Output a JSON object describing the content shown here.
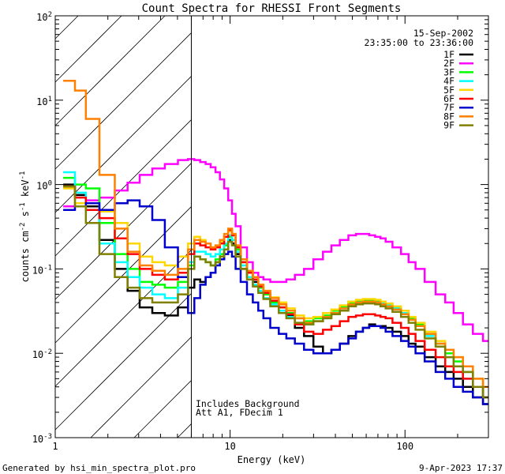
{
  "chart_data": {
    "type": "line",
    "title": "Count Spectra for RHESSI Front Segments",
    "date": "15-Sep-2002",
    "time_range": "23:35:00 to 23:36:00",
    "xlabel": "Energy (keV)",
    "ylabel_parts": [
      "counts cm",
      "-2",
      " s",
      "-1",
      " keV",
      "-1"
    ],
    "xscale": "log",
    "yscale": "log",
    "xlim": [
      1,
      300
    ],
    "ylim": [
      0.001,
      100
    ],
    "x_ticks": [
      {
        "value": 1,
        "label": "1"
      },
      {
        "value": 10,
        "label": "10"
      },
      {
        "value": 100,
        "label": "100"
      }
    ],
    "y_ticks": [
      {
        "value": 0.001,
        "base": "10",
        "exp": "-3"
      },
      {
        "value": 0.01,
        "base": "10",
        "exp": "-2"
      },
      {
        "value": 0.1,
        "base": "10",
        "exp": "-1"
      },
      {
        "value": 1,
        "base": "10",
        "exp": "0"
      },
      {
        "value": 10,
        "base": "10",
        "exp": "1"
      },
      {
        "value": 100,
        "base": "10",
        "exp": "2"
      }
    ],
    "hatched_region_end_keV": 6,
    "annotations": [
      "Includes Background",
      "Att A1, FDecim 1"
    ],
    "legend_position": "top-right",
    "energy_keV": [
      1.2,
      1.4,
      1.6,
      2,
      2.4,
      2.8,
      3.3,
      3.9,
      4.6,
      5.5,
      6,
      6.5,
      7,
      7.5,
      8,
      8.5,
      9,
      9.5,
      10,
      10.5,
      11,
      12,
      13,
      14,
      15,
      16,
      18,
      20,
      22,
      25,
      28,
      32,
      36,
      40,
      45,
      50,
      55,
      60,
      65,
      70,
      75,
      80,
      90,
      100,
      110,
      120,
      140,
      160,
      180,
      200,
      230,
      260,
      300
    ],
    "series": [
      {
        "name": "1F",
        "color": "#000000",
        "values": [
          1.0,
          0.75,
          0.55,
          0.22,
          0.1,
          0.055,
          0.035,
          0.03,
          0.028,
          0.035,
          0.06,
          0.075,
          0.07,
          0.08,
          0.09,
          0.12,
          0.13,
          0.17,
          0.22,
          0.2,
          0.15,
          0.1,
          0.08,
          0.07,
          0.06,
          0.05,
          0.04,
          0.035,
          0.028,
          0.02,
          0.016,
          0.012,
          0.01,
          0.011,
          0.013,
          0.016,
          0.018,
          0.02,
          0.022,
          0.021,
          0.021,
          0.02,
          0.018,
          0.016,
          0.013,
          0.012,
          0.009,
          0.007,
          0.006,
          0.005,
          0.004,
          0.003,
          0.0025
        ]
      },
      {
        "name": "2F",
        "color": "#ff00ff",
        "values": [
          0.55,
          0.6,
          0.65,
          0.7,
          0.85,
          1.05,
          1.3,
          1.55,
          1.75,
          1.95,
          2.0,
          1.95,
          1.85,
          1.75,
          1.6,
          1.4,
          1.15,
          0.9,
          0.65,
          0.45,
          0.32,
          0.18,
          0.12,
          0.09,
          0.08,
          0.075,
          0.07,
          0.07,
          0.075,
          0.085,
          0.1,
          0.13,
          0.16,
          0.19,
          0.22,
          0.25,
          0.26,
          0.26,
          0.25,
          0.24,
          0.23,
          0.21,
          0.18,
          0.15,
          0.12,
          0.1,
          0.07,
          0.05,
          0.04,
          0.03,
          0.022,
          0.017,
          0.014
        ]
      },
      {
        "name": "3F",
        "color": "#00ff00",
        "values": [
          1.2,
          1.0,
          0.9,
          0.35,
          0.15,
          0.1,
          0.07,
          0.065,
          0.06,
          0.07,
          0.11,
          0.14,
          0.13,
          0.12,
          0.11,
          0.13,
          0.15,
          0.19,
          0.24,
          0.22,
          0.17,
          0.12,
          0.09,
          0.075,
          0.06,
          0.05,
          0.04,
          0.035,
          0.03,
          0.026,
          0.024,
          0.026,
          0.028,
          0.032,
          0.036,
          0.04,
          0.042,
          0.043,
          0.043,
          0.042,
          0.04,
          0.038,
          0.035,
          0.03,
          0.026,
          0.022,
          0.017,
          0.013,
          0.01,
          0.008,
          0.006,
          0.004,
          0.003
        ]
      },
      {
        "name": "4F",
        "color": "#00ffff",
        "values": [
          1.4,
          0.8,
          0.6,
          0.2,
          0.12,
          0.08,
          0.06,
          0.05,
          0.045,
          0.06,
          0.12,
          0.16,
          0.16,
          0.15,
          0.14,
          0.15,
          0.17,
          0.2,
          0.25,
          0.22,
          0.16,
          0.11,
          0.08,
          0.065,
          0.055,
          0.045,
          0.038,
          0.032,
          0.027,
          0.023,
          0.022,
          0.024,
          0.026,
          0.03,
          0.034,
          0.038,
          0.04,
          0.041,
          0.041,
          0.04,
          0.039,
          0.037,
          0.034,
          0.03,
          0.025,
          0.021,
          0.016,
          0.012,
          0.009,
          0.007,
          0.005,
          0.004,
          0.003
        ]
      },
      {
        "name": "5F",
        "color": "#ffd700",
        "values": [
          0.9,
          0.6,
          0.5,
          0.48,
          0.35,
          0.2,
          0.14,
          0.12,
          0.11,
          0.14,
          0.2,
          0.24,
          0.22,
          0.2,
          0.18,
          0.19,
          0.21,
          0.24,
          0.28,
          0.25,
          0.19,
          0.13,
          0.095,
          0.08,
          0.065,
          0.055,
          0.046,
          0.04,
          0.034,
          0.028,
          0.026,
          0.027,
          0.03,
          0.033,
          0.037,
          0.041,
          0.043,
          0.044,
          0.044,
          0.043,
          0.041,
          0.039,
          0.036,
          0.032,
          0.027,
          0.023,
          0.018,
          0.014,
          0.011,
          0.009,
          0.007,
          0.005,
          0.004
        ]
      },
      {
        "name": "6F",
        "color": "#ff0000",
        "values": [
          0.95,
          0.7,
          0.5,
          0.4,
          0.23,
          0.15,
          0.1,
          0.085,
          0.075,
          0.09,
          0.15,
          0.2,
          0.19,
          0.18,
          0.17,
          0.18,
          0.2,
          0.24,
          0.29,
          0.25,
          0.18,
          0.12,
          0.09,
          0.075,
          0.062,
          0.052,
          0.042,
          0.035,
          0.029,
          0.022,
          0.018,
          0.017,
          0.019,
          0.021,
          0.024,
          0.027,
          0.028,
          0.029,
          0.029,
          0.028,
          0.027,
          0.026,
          0.023,
          0.02,
          0.017,
          0.014,
          0.011,
          0.009,
          0.007,
          0.006,
          0.005,
          0.004,
          0.003
        ]
      },
      {
        "name": "7F",
        "color": "#0000cc",
        "values": [
          0.5,
          0.55,
          0.6,
          0.5,
          0.6,
          0.65,
          0.55,
          0.38,
          0.18,
          0.08,
          0.03,
          0.045,
          0.065,
          0.08,
          0.09,
          0.11,
          0.13,
          0.15,
          0.16,
          0.14,
          0.1,
          0.07,
          0.05,
          0.04,
          0.032,
          0.026,
          0.02,
          0.017,
          0.015,
          0.013,
          0.011,
          0.01,
          0.01,
          0.011,
          0.013,
          0.015,
          0.018,
          0.02,
          0.021,
          0.021,
          0.02,
          0.018,
          0.016,
          0.014,
          0.012,
          0.01,
          0.008,
          0.006,
          0.005,
          0.004,
          0.0035,
          0.003,
          0.0025
        ]
      },
      {
        "name": "8F",
        "color": "#ff8000",
        "values": [
          17,
          13,
          6,
          1.3,
          0.3,
          0.16,
          0.11,
          0.095,
          0.085,
          0.1,
          0.17,
          0.22,
          0.21,
          0.2,
          0.18,
          0.19,
          0.22,
          0.26,
          0.3,
          0.26,
          0.19,
          0.13,
          0.095,
          0.08,
          0.065,
          0.055,
          0.045,
          0.038,
          0.032,
          0.026,
          0.023,
          0.024,
          0.027,
          0.03,
          0.034,
          0.038,
          0.04,
          0.041,
          0.041,
          0.04,
          0.038,
          0.036,
          0.033,
          0.029,
          0.025,
          0.021,
          0.017,
          0.013,
          0.011,
          0.009,
          0.007,
          0.005,
          0.004
        ]
      },
      {
        "name": "9F",
        "color": "#808000",
        "values": [
          0.95,
          0.55,
          0.35,
          0.15,
          0.08,
          0.06,
          0.045,
          0.04,
          0.04,
          0.05,
          0.1,
          0.14,
          0.13,
          0.12,
          0.11,
          0.12,
          0.14,
          0.17,
          0.21,
          0.19,
          0.14,
          0.1,
          0.075,
          0.062,
          0.052,
          0.044,
          0.036,
          0.03,
          0.026,
          0.023,
          0.022,
          0.024,
          0.026,
          0.029,
          0.032,
          0.036,
          0.038,
          0.039,
          0.039,
          0.038,
          0.036,
          0.034,
          0.031,
          0.027,
          0.023,
          0.019,
          0.015,
          0.012,
          0.009,
          0.007,
          0.006,
          0.004,
          0.003
        ]
      }
    ]
  },
  "footer": {
    "left": "Generated by hsi_min_spectra_plot.pro",
    "right": "9-Apr-2023 17:37"
  }
}
